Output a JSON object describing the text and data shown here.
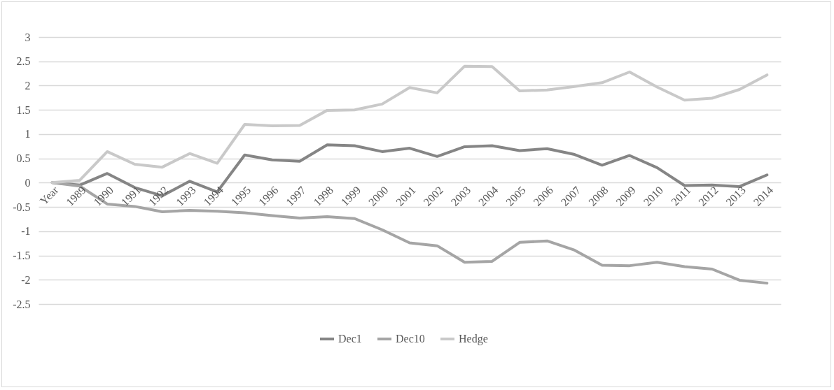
{
  "chart_data": {
    "type": "line",
    "categories": [
      "Year",
      "1989",
      "1990",
      "1991",
      "1992",
      "1993",
      "1994",
      "1995",
      "1996",
      "1997",
      "1998",
      "1999",
      "2000",
      "2001",
      "2002",
      "2003",
      "2004",
      "2005",
      "2006",
      "2007",
      "2008",
      "2009",
      "2010",
      "2011",
      "2012",
      "2013",
      "2014"
    ],
    "series": [
      {
        "name": "Dec1",
        "color": "#858585",
        "values": [
          0,
          -0.05,
          0.19,
          -0.1,
          -0.27,
          0.03,
          -0.19,
          0.57,
          0.47,
          0.44,
          0.78,
          0.76,
          0.64,
          0.71,
          0.54,
          0.74,
          0.76,
          0.66,
          0.7,
          0.58,
          0.36,
          0.56,
          0.31,
          -0.06,
          -0.05,
          -0.08,
          0.16
        ]
      },
      {
        "name": "Dec10",
        "color": "#a5a5a5",
        "values": [
          0,
          -0.07,
          -0.44,
          -0.49,
          -0.6,
          -0.57,
          -0.59,
          -0.62,
          -0.68,
          -0.73,
          -0.7,
          -0.74,
          -0.97,
          -1.24,
          -1.3,
          -1.64,
          -1.62,
          -1.23,
          -1.2,
          -1.39,
          -1.7,
          -1.71,
          -1.64,
          -1.73,
          -1.78,
          -2.01,
          -2.07
        ]
      },
      {
        "name": "Hedge",
        "color": "#c9c9c9",
        "values": [
          0,
          0.05,
          0.64,
          0.38,
          0.32,
          0.6,
          0.4,
          1.2,
          1.17,
          1.18,
          1.49,
          1.5,
          1.62,
          1.96,
          1.85,
          2.4,
          2.39,
          1.89,
          1.91,
          1.98,
          2.06,
          2.28,
          1.97,
          1.7,
          1.74,
          1.92,
          2.22
        ]
      }
    ],
    "ylim": [
      -2.5,
      3
    ],
    "yticks": [
      -2.5,
      -2,
      -1.5,
      -1,
      -0.5,
      0,
      0.5,
      1,
      1.5,
      2,
      2.5,
      3
    ],
    "grid": "y",
    "legend": "bottom",
    "marker": "none",
    "line_style": "solid"
  }
}
